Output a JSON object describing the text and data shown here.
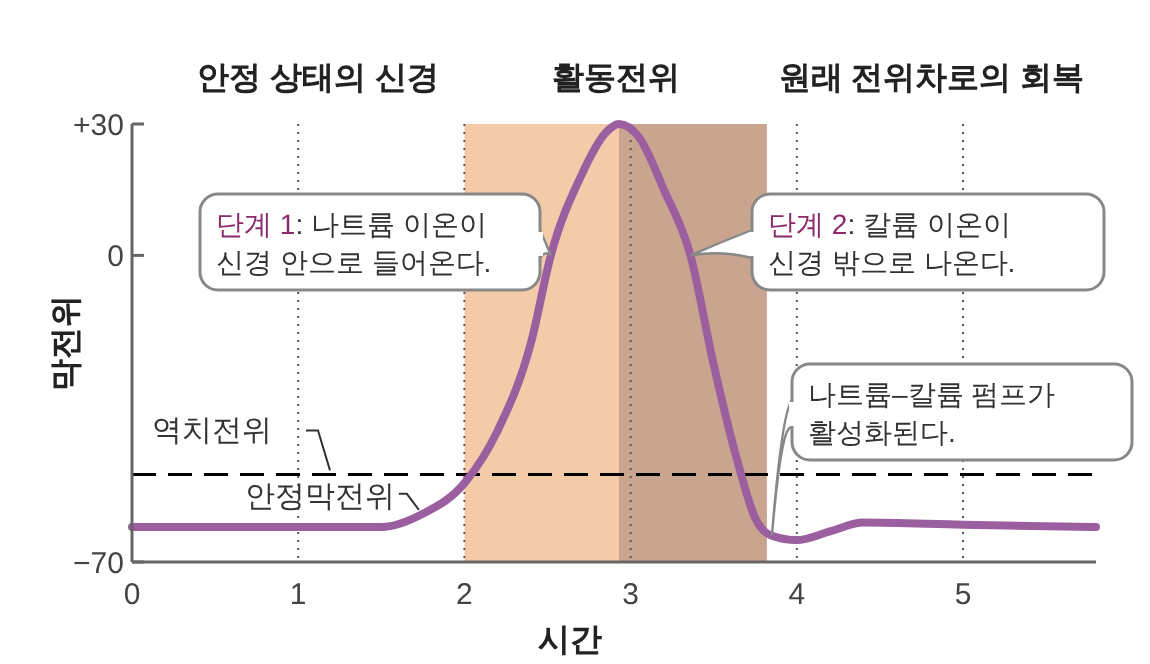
{
  "chart_data": {
    "type": "line",
    "xlabel": "시간",
    "ylabel": "막전위",
    "xlim": [
      0,
      5.8
    ],
    "xticks": [
      0,
      1,
      2,
      3,
      4,
      5
    ],
    "ylim": [
      -70,
      30
    ],
    "yticks": [
      {
        "value": 30,
        "label": "+30"
      },
      0,
      {
        "value": -70,
        "label": "−70"
      }
    ],
    "grid": "x",
    "marker": "none",
    "line_style": "solid",
    "x": [
      0,
      0.5,
      1,
      1.5,
      1.75,
      2,
      2.2,
      2.4,
      2.52,
      2.7,
      2.85,
      2.93,
      3.05,
      3.2,
      3.36,
      3.5,
      3.65,
      3.75,
      3.85,
      4,
      4.2,
      4.4,
      5,
      5.8
    ],
    "series": [
      {
        "color": "#9b5fa0",
        "values": [
          -62,
          -62,
          -62,
          -62,
          -59,
          -52,
          -40,
          -20,
          0,
          18,
          28,
          30,
          27,
          15,
          0,
          -25,
          -48,
          -60,
          -64,
          -65,
          -63,
          -61,
          -61.5,
          -62
        ]
      }
    ],
    "bands": [
      {
        "axis": "x",
        "from": 2,
        "to": 2.93,
        "color": "#f3cba9"
      },
      {
        "axis": "x",
        "from": 2.93,
        "to": 3.82,
        "color": "#c9a590"
      }
    ],
    "ref_lines": [
      {
        "axis": "y",
        "value": -50,
        "label": "역치전위",
        "line_style": "dashed",
        "color": "#000000"
      }
    ],
    "annotations": [
      "안정 상태의 신경",
      "활동전위",
      "원래 전위차로의 회복",
      {
        "text": "단계 1: 나트륨 이온이 신경 안으로 들어온다.",
        "x": 2.52,
        "y": 0
      },
      {
        "text": "단계 2: 칼륨 이온이 신경 밖으로 나온다.",
        "x": 3.36,
        "y": 0
      },
      {
        "text": "안정막전위",
        "x": 1.75,
        "y": -59
      },
      {
        "text": "나트륨–칼륨 펌프가 활성화된다.",
        "x": 3.85,
        "y": -64
      }
    ]
  }
}
